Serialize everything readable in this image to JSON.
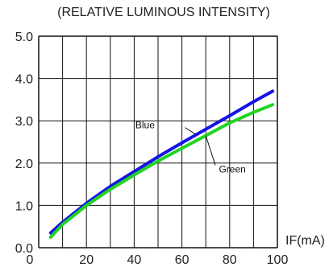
{
  "chart_data": {
    "type": "line",
    "title": "(RELATIVE LUMINOUS INTENSITY)",
    "xlabel": "IF(mA)",
    "ylabel": "",
    "xlim": [
      0,
      100
    ],
    "ylim": [
      0,
      5
    ],
    "x_ticks": [
      0,
      20,
      40,
      60,
      80,
      100
    ],
    "y_ticks": [
      "0.0",
      "1.0",
      "2.0",
      "3.0",
      "4.0",
      "5.0"
    ],
    "grid": true,
    "series": [
      {
        "name": "Blue",
        "color": "#1414e6",
        "x": [
          5,
          10,
          20,
          30,
          40,
          50,
          60,
          70,
          80,
          90,
          98
        ],
        "y": [
          0.35,
          0.6,
          1.05,
          1.45,
          1.8,
          2.15,
          2.48,
          2.8,
          3.12,
          3.45,
          3.7
        ]
      },
      {
        "name": "Green",
        "color": "#22d322",
        "x": [
          5,
          10,
          20,
          30,
          40,
          50,
          60,
          70,
          80,
          90,
          98
        ],
        "y": [
          0.25,
          0.55,
          1.0,
          1.38,
          1.72,
          2.05,
          2.35,
          2.65,
          2.95,
          3.2,
          3.38
        ]
      }
    ],
    "annotations": [
      {
        "text": "Blue",
        "series": "Blue"
      },
      {
        "text": "Green",
        "series": "Green"
      }
    ]
  }
}
